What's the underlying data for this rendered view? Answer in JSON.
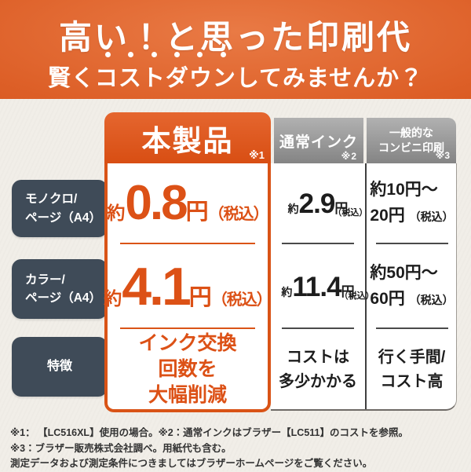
{
  "banner": {
    "line1": "高い！と思った印刷代",
    "line2_prefix": "賢く",
    "line2_emphasis": "コストダウン",
    "line2_suffix": "してみませんか？"
  },
  "table": {
    "columns": {
      "product": {
        "label": "本製品",
        "note": "※1"
      },
      "normal_ink": {
        "label": "通常インク",
        "note": "※2"
      },
      "convenience": {
        "label_line1": "一般的な",
        "label_line2": "コンビニ印刷",
        "note": "※3"
      }
    },
    "row_headers": {
      "mono": {
        "line1": "モノクロ/",
        "line2": "ページ（A4）"
      },
      "color": {
        "line1": "カラー/",
        "line2": "ページ（A4）"
      },
      "feature": {
        "line1": "特徴"
      }
    },
    "cells": {
      "product": {
        "mono": {
          "approx": "約",
          "value": "0.8",
          "unit": "円",
          "tax": "（税込）"
        },
        "color": {
          "approx": "約",
          "value": "4.1",
          "unit": "円",
          "tax": "（税込）"
        },
        "feature": {
          "line1": "インク交換",
          "line2": "回数を",
          "line3": "大幅削減"
        }
      },
      "normal_ink": {
        "mono": {
          "approx": "約",
          "value": "2.9",
          "unit": "円",
          "tax": "（税込）"
        },
        "color": {
          "approx": "約",
          "value": "11.4",
          "unit": "円",
          "tax": "（税込）"
        },
        "feature": {
          "line1": "コストは",
          "line2": "多少かかる"
        }
      },
      "convenience": {
        "mono": {
          "line1": "約10円～",
          "line2": "20円",
          "tax": "（税込）"
        },
        "color": {
          "line1": "約50円～",
          "line2": "60円",
          "tax": "（税込）"
        },
        "feature": {
          "line1": "行く手間/",
          "line2": "コスト高"
        }
      }
    }
  },
  "footnotes": [
    "※1： 【LC516XL】使用の場合。※2：通常インクはブラザー【LC511】のコストを参照。",
    "※3：ブラザー販売株式会社調べ。用紙代も含む。",
    "測定データおよび測定条件につきましてはブラザーホームページをご覧ください。"
  ],
  "colors": {
    "accent_orange": "#dc5116",
    "slate": "#3f4b58",
    "header_gray": "#9a9a9a",
    "background": "#f1eee8"
  }
}
